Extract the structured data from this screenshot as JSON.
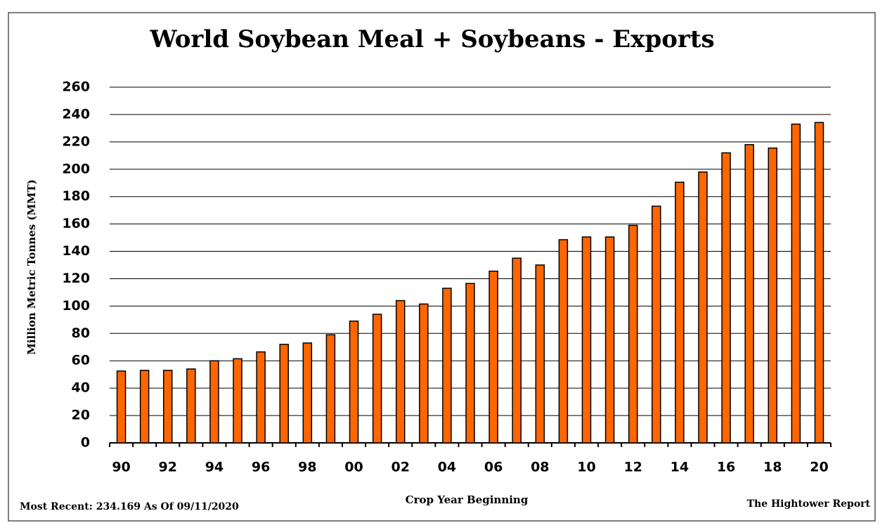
{
  "chart_data": {
    "type": "bar",
    "title": "World Soybean Meal + Soybeans - Exports",
    "y_label": "Million Metric Tonnes (MMT)",
    "x_label": "Crop Year Beginning",
    "footnote_left": "Most Recent: 234.169 As Of 09/11/2020",
    "footnote_right": "The Hightower Report",
    "categories": [
      "90",
      null,
      "92",
      null,
      "94",
      null,
      "96",
      null,
      "98",
      null,
      "00",
      null,
      "02",
      null,
      "04",
      null,
      "06",
      null,
      "08",
      null,
      "10",
      null,
      "12",
      null,
      "14",
      null,
      "16",
      null,
      "18",
      null,
      "20"
    ],
    "values": [
      52.5,
      53,
      53,
      54,
      60,
      61.5,
      66.5,
      72,
      73,
      79,
      89,
      94,
      104,
      101.5,
      113,
      116.5,
      125.5,
      135,
      130,
      148.5,
      150.5,
      150.5,
      159,
      173,
      190.5,
      198,
      212,
      218,
      215.5,
      233,
      234.169
    ],
    "color": "#ff6600",
    "ylim": [
      0,
      260
    ],
    "yticks": [
      0,
      20,
      40,
      60,
      80,
      100,
      120,
      140,
      160,
      180,
      200,
      220,
      240,
      260
    ],
    "grid": true
  }
}
